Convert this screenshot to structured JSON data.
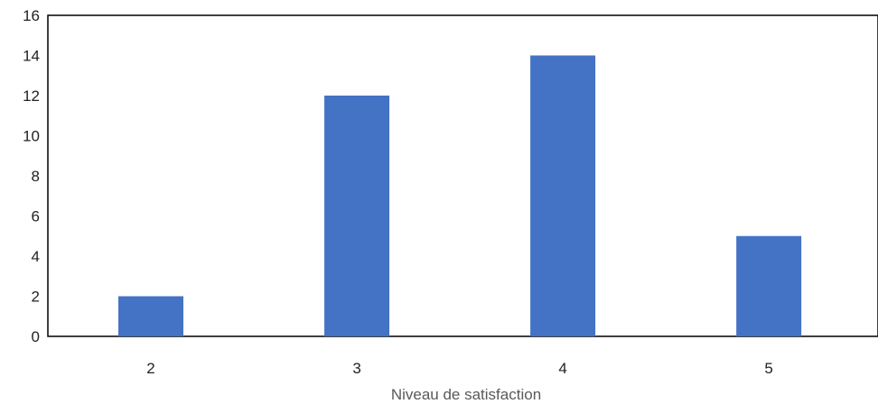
{
  "chart_data": {
    "type": "bar",
    "categories": [
      "2",
      "3",
      "4",
      "5"
    ],
    "values": [
      2,
      12,
      14,
      5
    ],
    "title": "",
    "xlabel": "Niveau de satisfaction",
    "ylabel": "",
    "ylim": [
      0,
      16
    ],
    "yticks": [
      0,
      2,
      4,
      6,
      8,
      10,
      12,
      14,
      16
    ],
    "grid": false,
    "legend": "none",
    "bar_color": "#4472C4",
    "axis_color": "#000000"
  }
}
